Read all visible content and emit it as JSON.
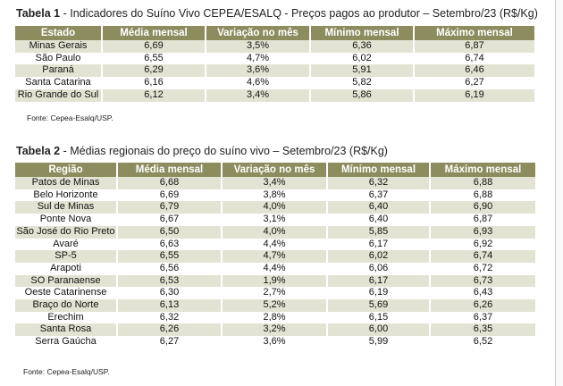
{
  "table1": {
    "title_bold": "Tabela 1",
    "title_rest": " - Indicadores do Suíno Vivo CEPEA/ESALQ - Preços pagos ao produtor – Setembro/23 (R$/Kg)",
    "headers": [
      "Estado",
      "Média mensal",
      "Variação no mês",
      "Mínimo mensal",
      "Máximo mensal"
    ],
    "rows": [
      [
        "Minas Gerais",
        "6,69",
        "3,5%",
        "6,36",
        "6,87"
      ],
      [
        "São Paulo",
        "6,55",
        "4,7%",
        "6,02",
        "6,74"
      ],
      [
        "Paraná",
        "6,29",
        "3,6%",
        "5,91",
        "6,46"
      ],
      [
        "Santa Catarina",
        "6,16",
        "4,6%",
        "5,82",
        "6,27"
      ],
      [
        "Rio Grande do Sul",
        "6,12",
        "3,4%",
        "5,86",
        "6,19"
      ]
    ],
    "source": "Fonte: Cepea-Esalq/USP."
  },
  "table2": {
    "title_bold": "Tabela 2",
    "title_rest": " - Médias regionais do preço do suíno vivo – Setembro/23 (R$/Kg)",
    "headers": [
      "Região",
      "Média mensal",
      "Variação no mês",
      "Mínimo mensal",
      "Máximo mensal"
    ],
    "rows": [
      [
        "Patos de Minas",
        "6,68",
        "3,4%",
        "6,32",
        "6,88"
      ],
      [
        "Belo Horizonte",
        "6,69",
        "3,8%",
        "6,37",
        "6,88"
      ],
      [
        "Sul de Minas",
        "6,79",
        "4,0%",
        "6,40",
        "6,90"
      ],
      [
        "Ponte Nova",
        "6,67",
        "3,1%",
        "6,40",
        "6,87"
      ],
      [
        "São José do Rio Preto",
        "6,50",
        "4,0%",
        "5,85",
        "6,93"
      ],
      [
        "Avaré",
        "6,63",
        "4,4%",
        "6,17",
        "6,92"
      ],
      [
        "SP-5",
        "6,55",
        "4,7%",
        "6,02",
        "6,74"
      ],
      [
        "Arapoti",
        "6,56",
        "4,4%",
        "6,06",
        "6,72"
      ],
      [
        "SO Paranaense",
        "6,53",
        "1,9%",
        "6,17",
        "6,73"
      ],
      [
        "Oeste Catarinense",
        "6,30",
        "2,7%",
        "6,19",
        "6,43"
      ],
      [
        "Braço do Norte",
        "6,13",
        "5,2%",
        "5,69",
        "6,26"
      ],
      [
        "Erechim",
        "6,32",
        "2,8%",
        "6,15",
        "6,37"
      ],
      [
        "Santa Rosa",
        "6,26",
        "3,2%",
        "6,00",
        "6,35"
      ],
      [
        "Serra Gaúcha",
        "6,27",
        "3,6%",
        "5,99",
        "6,52"
      ]
    ],
    "source": "Fonte: Cepea-Esalq/USP."
  }
}
